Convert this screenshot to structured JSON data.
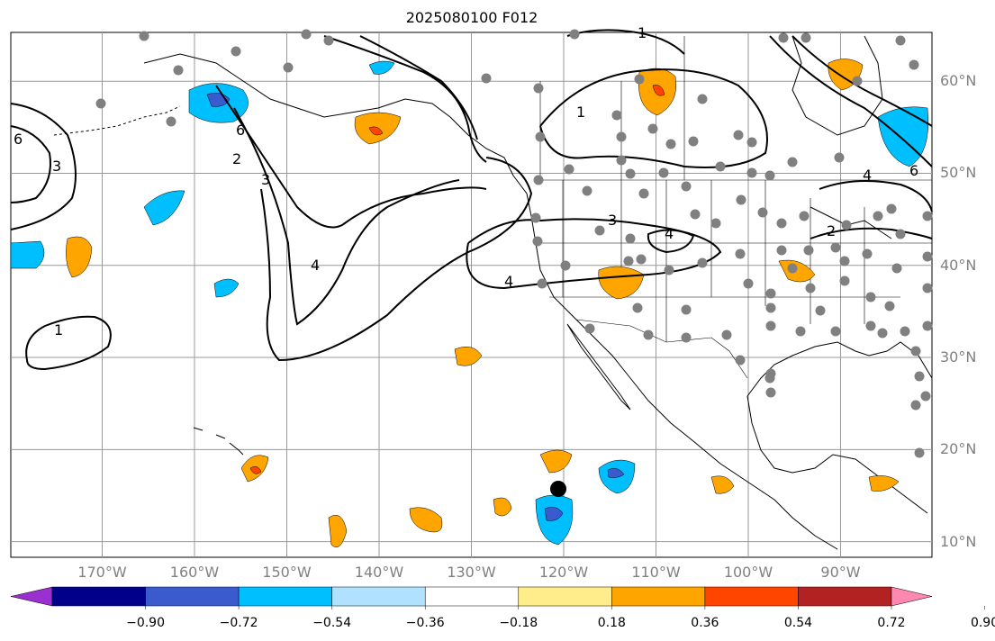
{
  "title": "2025080100 F012",
  "lat_labels": [
    {
      "text": "60°N",
      "lat": 60
    },
    {
      "text": "50°N",
      "lat": 50
    },
    {
      "text": "40°N",
      "lat": 40
    },
    {
      "text": "30°N",
      "lat": 30
    },
    {
      "text": "20°N",
      "lat": 20
    },
    {
      "text": "10°N",
      "lat": 10
    }
  ],
  "lon_labels": [
    {
      "text": "170°W",
      "lon": -170
    },
    {
      "text": "160°W",
      "lon": -160
    },
    {
      "text": "150°W",
      "lon": -150
    },
    {
      "text": "140°W",
      "lon": -140
    },
    {
      "text": "130°W",
      "lon": -130
    },
    {
      "text": "120°W",
      "lon": -120
    },
    {
      "text": "110°W",
      "lon": -110
    },
    {
      "text": "100°W",
      "lon": -100
    },
    {
      "text": "90°W",
      "lon": -90
    }
  ],
  "colorbar": {
    "ticks": [
      "−0.90",
      "−0.72",
      "−0.54",
      "−0.36",
      "−0.18",
      "0.18",
      "0.36",
      "0.54",
      "0.72",
      "0.90"
    ],
    "colors": [
      "#9b30d0",
      "#00008b",
      "#3a5bcd",
      "#00bfff",
      "#b0e2ff",
      "#ffffff",
      "#ffec8b",
      "#ffa500",
      "#ff4500",
      "#b22222",
      "#ff88b0"
    ]
  },
  "contour_labels": [
    "1",
    "2",
    "3",
    "4",
    "6"
  ],
  "colors": {
    "land_outline": "#000000",
    "grid": "#999999",
    "dots": "#808080",
    "contour": "#000000"
  }
}
